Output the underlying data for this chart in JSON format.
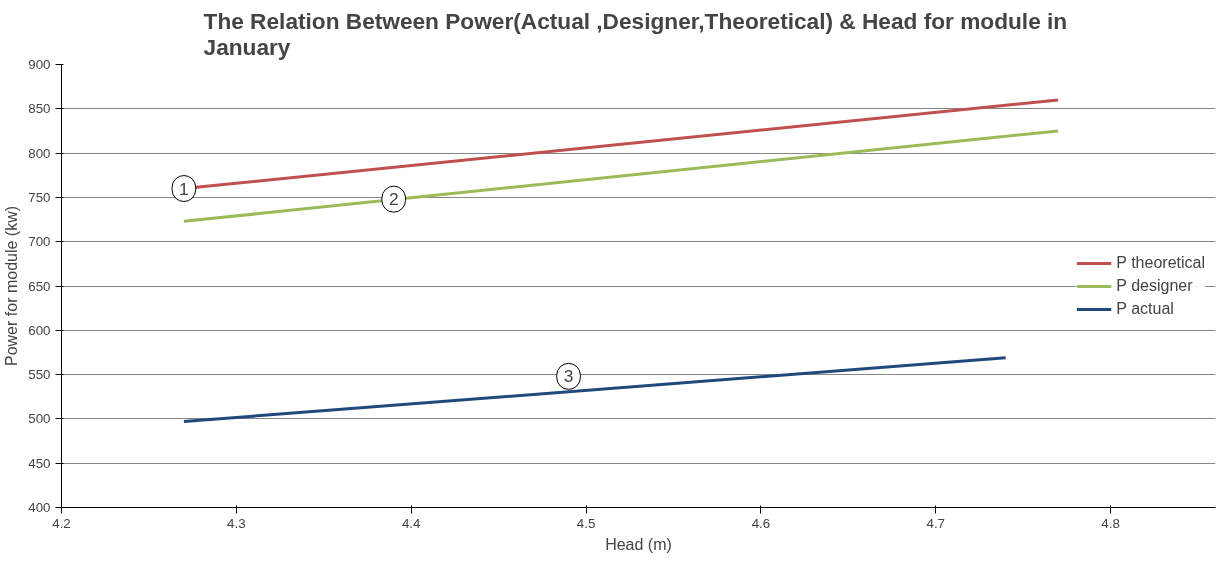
{
  "chart_data": {
    "type": "line",
    "title": "The Relation Between Power(Actual ,Designer,Theoretical)  & Head for module in January",
    "xlabel": "Head (m)",
    "ylabel": "Power for module (kw)",
    "series": [
      {
        "name": "P theoretical",
        "color": "#c0504d",
        "x": [
          4.27,
          4.77
        ],
        "values": [
          760,
          860
        ]
      },
      {
        "name": "P designer",
        "color": "#9bbb59",
        "x": [
          4.27,
          4.77
        ],
        "values": [
          723,
          825
        ]
      },
      {
        "name": "P actual",
        "color": "#1f497d",
        "x": [
          4.27,
          4.74
        ],
        "values": [
          497,
          569
        ]
      }
    ],
    "annotations": [
      {
        "text": "1",
        "x": 4.27,
        "y": 760
      },
      {
        "text": "2",
        "x": 4.39,
        "y": 748
      },
      {
        "text": "3",
        "x": 4.49,
        "y": 548
      }
    ],
    "xlim": [
      4.2,
      4.86
    ],
    "xticks": [
      4.2,
      4.3,
      4.4,
      4.5,
      4.6,
      4.7,
      4.8
    ],
    "ylim": [
      400,
      900
    ],
    "yticks": [
      400,
      450,
      500,
      550,
      600,
      650,
      700,
      750,
      800,
      850,
      900
    ],
    "grid": "y",
    "legend": "right",
    "line_style": "solid"
  }
}
